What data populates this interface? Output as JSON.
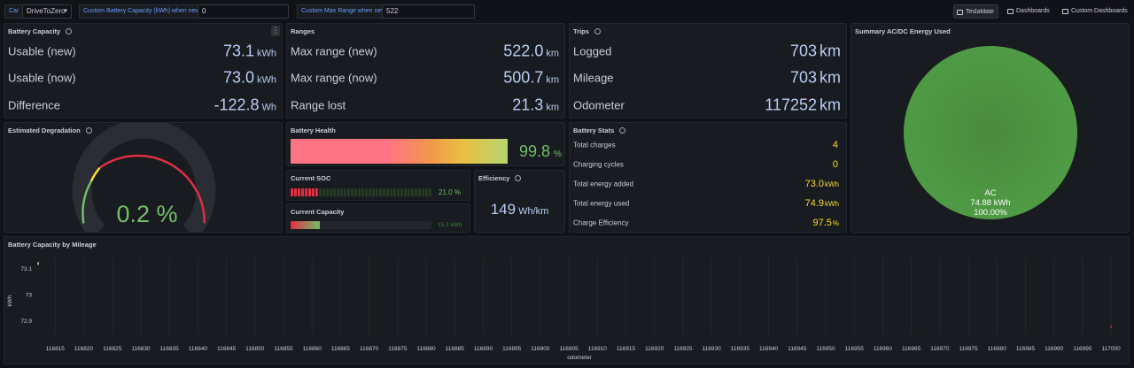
{
  "topbar": {
    "car_label": "Car",
    "car_value": "DriveToZero",
    "capacity_label": "Custom Battery Capacity (kWh) when new",
    "capacity_value": "0",
    "range_label": "Custom Max Range when new",
    "range_value": "522",
    "links": [
      "TeslaMate",
      "Dashboards",
      "Custom Dashboards"
    ]
  },
  "battery_capacity": {
    "title": "Battery Capacity",
    "rows": [
      {
        "label": "Usable (new)",
        "value": "73.1",
        "unit": "kWh"
      },
      {
        "label": "Usable (now)",
        "value": "73.0",
        "unit": "kWh"
      },
      {
        "label": "Difference",
        "value": "-122.8",
        "unit": "Wh"
      }
    ]
  },
  "ranges": {
    "title": "Ranges",
    "rows": [
      {
        "label": "Max range (new)",
        "value": "522.0",
        "unit": "km"
      },
      {
        "label": "Max range (now)",
        "value": "500.7",
        "unit": "km"
      },
      {
        "label": "Range lost",
        "value": "21.3",
        "unit": "km"
      }
    ]
  },
  "trips": {
    "title": "Trips",
    "rows": [
      {
        "label": "Logged",
        "value": "703",
        "unit": "km"
      },
      {
        "label": "Mileage",
        "value": "703",
        "unit": "km"
      },
      {
        "label": "Odometer",
        "value": "117252",
        "unit": "km"
      }
    ]
  },
  "summary": {
    "title": "Summary AC/DC Energy Used",
    "slice_label": "AC",
    "slice_value": "74.88 kWh",
    "slice_percent": "100.00%",
    "ac_fraction": 1.0,
    "color": "#56a64b"
  },
  "degradation": {
    "title": "Estimated Degradation",
    "value": "0.2 %",
    "fraction": 0.002
  },
  "health": {
    "title": "Battery Health",
    "value": "99.8",
    "unit": "%",
    "fraction": 0.998
  },
  "soc": {
    "title": "Current SOC",
    "value": "21.0 %",
    "fraction": 0.21
  },
  "current_capacity": {
    "title": "Current Capacity",
    "value": "15.3 kWh",
    "fraction": 0.21
  },
  "efficiency": {
    "title": "Efficiency",
    "value": "149",
    "unit": "Wh/km"
  },
  "battery_stats": {
    "title": "Battery Stats",
    "rows": [
      {
        "label": "Total charges",
        "value": "4",
        "unit": ""
      },
      {
        "label": "Charging cycles",
        "value": "0",
        "unit": ""
      },
      {
        "label": "Total energy added",
        "value": "73.0",
        "unit": "kWh"
      },
      {
        "label": "Total energy used",
        "value": "74.9",
        "unit": "kWh"
      },
      {
        "label": "Charge Efficiency",
        "value": "97.5",
        "unit": "%"
      }
    ]
  },
  "chart_data": {
    "type": "scatter",
    "title": "Battery Capacity by Mileage",
    "xlabel": "odometer",
    "ylabel": "kWh",
    "xlim": [
      116812,
      117002
    ],
    "ylim": [
      72.85,
      73.14
    ],
    "x_ticks": [
      "116815",
      "116820",
      "116825",
      "116830",
      "116835",
      "116840",
      "116845",
      "116850",
      "116855",
      "116860",
      "116865",
      "116870",
      "116875",
      "116880",
      "116885",
      "116890",
      "116895",
      "116900",
      "116905",
      "116910",
      "116915",
      "116920",
      "116925",
      "116930",
      "116935",
      "116940",
      "116945",
      "116950",
      "116955",
      "116960",
      "116965",
      "116970",
      "116975",
      "116980",
      "116985",
      "116990",
      "116995",
      "117000"
    ],
    "y_ticks": [
      "73.1",
      "73",
      "72.9"
    ],
    "points": [
      {
        "x": 116812,
        "y": 73.12
      },
      {
        "x": 117000,
        "y": 72.88
      }
    ]
  },
  "colors": {
    "accent_blue": "#b9cdf5",
    "yellow": "#fade2a",
    "green": "#73bf69",
    "red": "#e02f44"
  }
}
